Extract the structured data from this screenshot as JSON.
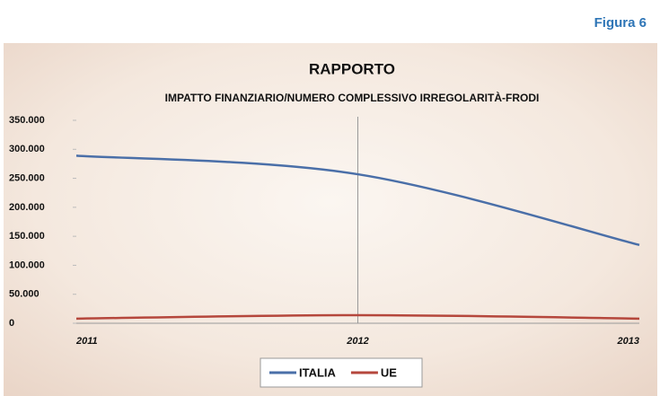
{
  "figure_label": "Figura 6",
  "chart_data": {
    "type": "line",
    "title": "RAPPORTO",
    "subtitle": "IMPATTO FINANZIARIO/NUMERO COMPLESSIVO IRREGOLARITÀ-FRODI",
    "categories": [
      "2011",
      "2012",
      "2013"
    ],
    "series": [
      {
        "name": "ITALIA",
        "color": "#4a6fa8",
        "values": [
          289000,
          257000,
          135000
        ]
      },
      {
        "name": "UE",
        "color": "#b5473c",
        "values": [
          8000,
          14000,
          8000
        ]
      }
    ],
    "ylim": [
      0,
      350000
    ],
    "yticks": [
      0,
      {
        "value": 50000,
        "label": "50.000"
      },
      {
        "value": 100000,
        "label": "100.000"
      },
      {
        "value": 150000,
        "label": "150.000"
      },
      {
        "value": 200000,
        "label": "200.000"
      },
      {
        "value": 250000,
        "label": "250.000"
      },
      {
        "value": 300000,
        "label": "300.000"
      },
      {
        "value": 350000,
        "label": "350.000"
      }
    ],
    "legend": "bottom"
  }
}
